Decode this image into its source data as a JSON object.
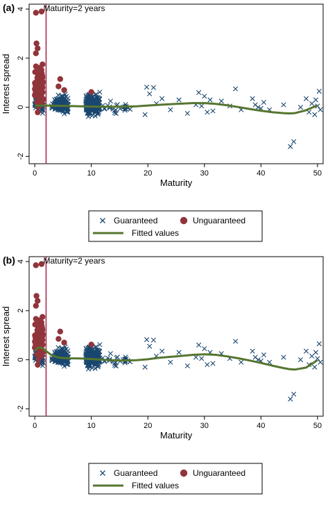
{
  "colors": {
    "guaranteed": "#1a476f",
    "unguaranteed": "#90353b",
    "fitted": "#55752f",
    "ref_line": "#a62b4e"
  },
  "chart_data": [
    {
      "type": "scatter",
      "panel_label": "(a)",
      "annotation": "Maturity=2 years",
      "reference_line_x": 2,
      "xlabel": "Maturity",
      "ylabel": "Interest spread",
      "xlim": [
        -1,
        51
      ],
      "ylim": [
        -2.3,
        4.2
      ],
      "x_ticks": [
        "0",
        "10",
        "20",
        "30",
        "40",
        "50"
      ],
      "y_ticks": [
        "-2",
        "0",
        "2",
        "4"
      ],
      "grid": false,
      "legend": {
        "position": "bottom",
        "entries": [
          "Guaranteed",
          "Unguaranteed",
          "Fitted values"
        ]
      },
      "series": [
        {
          "name": "Guaranteed",
          "marker": "x",
          "clusters": [
            {
              "x": [
                0,
                1.5
              ],
              "y": [
                -0.4,
                0.8
              ],
              "n": 70
            },
            {
              "x": [
                3,
                6
              ],
              "y": [
                -0.4,
                0.6
              ],
              "n": 120
            },
            {
              "x": [
                9,
                11.5
              ],
              "y": [
                -0.5,
                0.7
              ],
              "n": 220
            },
            {
              "x": [
                12,
                17
              ],
              "y": [
                -0.4,
                0.4
              ],
              "n": 25
            }
          ],
          "points": [
            {
              "x": 19.8,
              "y": 0.82
            },
            {
              "x": 20.3,
              "y": 0.55
            },
            {
              "x": 21,
              "y": 0.8
            },
            {
              "x": 19.5,
              "y": -0.3
            },
            {
              "x": 21.5,
              "y": 0.15
            },
            {
              "x": 22.5,
              "y": 0.35
            },
            {
              "x": 24,
              "y": -0.1
            },
            {
              "x": 25.5,
              "y": 0.3
            },
            {
              "x": 27,
              "y": -0.25
            },
            {
              "x": 28.5,
              "y": 0.1
            },
            {
              "x": 29,
              "y": 0.6
            },
            {
              "x": 29.5,
              "y": 0.05
            },
            {
              "x": 30,
              "y": 0.45
            },
            {
              "x": 30.5,
              "y": -0.2
            },
            {
              "x": 31,
              "y": 0.3
            },
            {
              "x": 31.5,
              "y": -0.15
            },
            {
              "x": 33,
              "y": 0.25
            },
            {
              "x": 34.5,
              "y": 0.05
            },
            {
              "x": 35.5,
              "y": 0.75
            },
            {
              "x": 36.5,
              "y": -0.1
            },
            {
              "x": 38.5,
              "y": 0.35
            },
            {
              "x": 39,
              "y": 0.1
            },
            {
              "x": 39.5,
              "y": 0.0
            },
            {
              "x": 40,
              "y": -0.05
            },
            {
              "x": 40.5,
              "y": 0.2
            },
            {
              "x": 41.5,
              "y": -0.1
            },
            {
              "x": 44,
              "y": 0.1
            },
            {
              "x": 45.2,
              "y": -1.6
            },
            {
              "x": 45.8,
              "y": -1.4
            },
            {
              "x": 47,
              "y": 0.0
            },
            {
              "x": 48,
              "y": 0.35
            },
            {
              "x": 48.5,
              "y": -0.2
            },
            {
              "x": 49,
              "y": 0.15
            },
            {
              "x": 49.5,
              "y": -0.3
            },
            {
              "x": 50,
              "y": 0.05
            },
            {
              "x": 50.3,
              "y": 0.65
            },
            {
              "x": 50.5,
              "y": -0.1
            },
            {
              "x": 49.7,
              "y": 0.3
            }
          ]
        },
        {
          "name": "Unguaranteed",
          "marker": "circle",
          "clusters": [
            {
              "x": [
                0,
                1.5
              ],
              "y": [
                -0.3,
                2.0
              ],
              "n": 80
            }
          ],
          "points": [
            {
              "x": 0.2,
              "y": 3.85
            },
            {
              "x": 1.2,
              "y": 3.9
            },
            {
              "x": 0.3,
              "y": 2.6
            },
            {
              "x": 0.5,
              "y": 2.4
            },
            {
              "x": 0.2,
              "y": 2.2
            },
            {
              "x": 4.5,
              "y": 1.15
            },
            {
              "x": 5.2,
              "y": 0.7
            },
            {
              "x": 4.2,
              "y": 0.85
            },
            {
              "x": 10,
              "y": 0.62
            }
          ]
        },
        {
          "name": "Fitted values",
          "type": "line",
          "x": [
            0,
            1,
            2,
            4,
            6,
            8,
            10,
            12,
            15,
            18,
            20,
            22,
            25,
            28,
            30,
            32,
            34,
            36,
            38,
            40,
            42,
            44,
            45,
            46,
            48,
            50
          ],
          "y": [
            0.07,
            0.07,
            0.07,
            0.06,
            0.05,
            0.04,
            0.03,
            0.02,
            0.02,
            0.04,
            0.07,
            0.1,
            0.14,
            0.17,
            0.17,
            0.14,
            0.08,
            0.01,
            -0.07,
            -0.14,
            -0.2,
            -0.24,
            -0.25,
            -0.24,
            -0.12,
            0.08
          ]
        }
      ]
    },
    {
      "type": "scatter",
      "panel_label": "(b)",
      "annotation": "Maturity=2 years",
      "reference_line_x": 2,
      "xlabel": "Maturity",
      "ylabel": "Interest spread",
      "xlim": [
        -1,
        51
      ],
      "ylim": [
        -2.3,
        4.2
      ],
      "x_ticks": [
        "0",
        "10",
        "20",
        "30",
        "40",
        "50"
      ],
      "y_ticks": [
        "-2",
        "0",
        "2",
        "4"
      ],
      "grid": false,
      "legend": {
        "position": "bottom",
        "entries": [
          "Guaranteed",
          "Unguaranteed",
          "Fitted values"
        ]
      },
      "series": [
        {
          "name": "Guaranteed",
          "marker": "x",
          "clusters": [
            {
              "x": [
                0,
                1.5
              ],
              "y": [
                -0.4,
                0.8
              ],
              "n": 70
            },
            {
              "x": [
                3,
                6
              ],
              "y": [
                -0.4,
                0.6
              ],
              "n": 120
            },
            {
              "x": [
                9,
                11.5
              ],
              "y": [
                -0.5,
                0.7
              ],
              "n": 220
            },
            {
              "x": [
                12,
                17
              ],
              "y": [
                -0.4,
                0.4
              ],
              "n": 25
            }
          ],
          "points": [
            {
              "x": 19.8,
              "y": 0.82
            },
            {
              "x": 20.3,
              "y": 0.55
            },
            {
              "x": 21,
              "y": 0.8
            },
            {
              "x": 19.5,
              "y": -0.3
            },
            {
              "x": 21.5,
              "y": 0.15
            },
            {
              "x": 22.5,
              "y": 0.35
            },
            {
              "x": 24,
              "y": -0.1
            },
            {
              "x": 25.5,
              "y": 0.3
            },
            {
              "x": 27,
              "y": -0.25
            },
            {
              "x": 28.5,
              "y": 0.1
            },
            {
              "x": 29,
              "y": 0.6
            },
            {
              "x": 29.5,
              "y": 0.05
            },
            {
              "x": 30,
              "y": 0.45
            },
            {
              "x": 30.5,
              "y": -0.2
            },
            {
              "x": 31,
              "y": 0.3
            },
            {
              "x": 31.5,
              "y": -0.15
            },
            {
              "x": 33,
              "y": 0.25
            },
            {
              "x": 34.5,
              "y": 0.05
            },
            {
              "x": 35.5,
              "y": 0.75
            },
            {
              "x": 36.5,
              "y": -0.1
            },
            {
              "x": 38.5,
              "y": 0.35
            },
            {
              "x": 39,
              "y": 0.1
            },
            {
              "x": 39.5,
              "y": 0.0
            },
            {
              "x": 40,
              "y": -0.05
            },
            {
              "x": 40.5,
              "y": 0.2
            },
            {
              "x": 41.5,
              "y": -0.1
            },
            {
              "x": 44,
              "y": 0.1
            },
            {
              "x": 45.2,
              "y": -1.6
            },
            {
              "x": 45.8,
              "y": -1.4
            },
            {
              "x": 47,
              "y": 0.0
            },
            {
              "x": 48,
              "y": 0.35
            },
            {
              "x": 48.5,
              "y": -0.2
            },
            {
              "x": 49,
              "y": 0.15
            },
            {
              "x": 49.5,
              "y": -0.3
            },
            {
              "x": 50,
              "y": 0.05
            },
            {
              "x": 50.3,
              "y": 0.65
            },
            {
              "x": 50.5,
              "y": -0.1
            },
            {
              "x": 49.7,
              "y": 0.3
            }
          ]
        },
        {
          "name": "Unguaranteed",
          "marker": "circle",
          "clusters": [
            {
              "x": [
                0,
                1.5
              ],
              "y": [
                -0.3,
                2.0
              ],
              "n": 80
            }
          ],
          "points": [
            {
              "x": 0.2,
              "y": 3.85
            },
            {
              "x": 1.2,
              "y": 3.9
            },
            {
              "x": 0.3,
              "y": 2.6
            },
            {
              "x": 0.5,
              "y": 2.4
            },
            {
              "x": 0.2,
              "y": 2.2
            },
            {
              "x": 4.5,
              "y": 1.15
            },
            {
              "x": 5.2,
              "y": 0.7
            },
            {
              "x": 4.2,
              "y": 0.85
            },
            {
              "x": 10,
              "y": 0.62
            }
          ]
        },
        {
          "name": "Fitted values",
          "type": "line",
          "x": [
            0,
            0.5,
            1,
            1.5,
            2,
            3,
            4,
            5,
            6,
            8,
            10,
            12,
            15,
            18,
            20,
            22,
            25,
            28,
            30,
            32,
            34,
            36,
            38,
            40,
            42,
            44,
            45,
            46,
            48,
            50
          ],
          "y": [
            0.38,
            0.48,
            0.5,
            0.45,
            0.35,
            0.18,
            0.1,
            0.07,
            0.06,
            0.05,
            0.03,
            0.0,
            -0.03,
            -0.02,
            0.02,
            0.08,
            0.14,
            0.2,
            0.22,
            0.2,
            0.14,
            0.06,
            -0.03,
            -0.13,
            -0.24,
            -0.34,
            -0.38,
            -0.4,
            -0.32,
            -0.02
          ]
        }
      ]
    }
  ]
}
